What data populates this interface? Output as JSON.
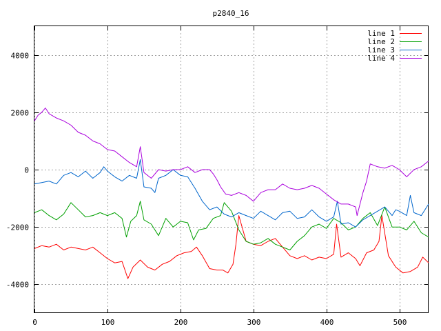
{
  "chart_data": {
    "type": "line",
    "title": "p2840_16",
    "xlabel": "",
    "ylabel": "",
    "xlim": [
      0,
      540
    ],
    "ylim": [
      -5000,
      5000
    ],
    "xticks": [
      0,
      100,
      200,
      300,
      400,
      500
    ],
    "yticks": [
      -4000,
      -2000,
      0,
      2000,
      4000
    ],
    "grid": true,
    "legend_position": "top-right",
    "series": [
      {
        "name": "line 1",
        "color": "#ff0000",
        "x": [
          0,
          10,
          20,
          30,
          40,
          50,
          60,
          70,
          80,
          90,
          100,
          110,
          120,
          128,
          135,
          145,
          155,
          165,
          175,
          185,
          195,
          205,
          215,
          222,
          230,
          240,
          250,
          258,
          265,
          272,
          276,
          280,
          290,
          300,
          310,
          320,
          330,
          340,
          350,
          360,
          370,
          380,
          390,
          400,
          410,
          414,
          420,
          430,
          440,
          446,
          455,
          465,
          472,
          476,
          485,
          495,
          505,
          515,
          525,
          532,
          540
        ],
        "y": [
          -2750,
          -2650,
          -2700,
          -2600,
          -2800,
          -2700,
          -2750,
          -2800,
          -2700,
          -2900,
          -3100,
          -3250,
          -3200,
          -3800,
          -3400,
          -3150,
          -3400,
          -3500,
          -3300,
          -3200,
          -3000,
          -2900,
          -2850,
          -2700,
          -3000,
          -3450,
          -3500,
          -3500,
          -3600,
          -3300,
          -2600,
          -1600,
          -2500,
          -2600,
          -2650,
          -2500,
          -2400,
          -2700,
          -3000,
          -3100,
          -3000,
          -3150,
          -3050,
          -3100,
          -2950,
          -1900,
          -3050,
          -2900,
          -3100,
          -3350,
          -2900,
          -2800,
          -2500,
          -1600,
          -3000,
          -3400,
          -3600,
          -3550,
          -3400,
          -3050,
          -3250
        ]
      },
      {
        "name": "line 2",
        "color": "#00a000",
        "x": [
          0,
          10,
          20,
          30,
          40,
          50,
          60,
          70,
          80,
          90,
          100,
          110,
          120,
          126,
          132,
          140,
          145,
          150,
          160,
          170,
          180,
          190,
          200,
          210,
          218,
          225,
          235,
          245,
          255,
          260,
          270,
          280,
          290,
          300,
          310,
          320,
          330,
          340,
          350,
          360,
          370,
          380,
          390,
          400,
          410,
          420,
          430,
          440,
          450,
          460,
          470,
          480,
          490,
          500,
          510,
          520,
          530,
          540
        ],
        "y": [
          -1500,
          -1400,
          -1600,
          -1750,
          -1550,
          -1150,
          -1400,
          -1650,
          -1600,
          -1500,
          -1600,
          -1500,
          -1700,
          -2350,
          -1800,
          -1600,
          -1100,
          -1750,
          -1900,
          -2300,
          -1700,
          -2000,
          -1800,
          -1850,
          -2450,
          -2100,
          -2050,
          -1700,
          -1600,
          -1150,
          -1450,
          -2100,
          -2500,
          -2600,
          -2550,
          -2400,
          -2600,
          -2700,
          -2800,
          -2500,
          -2300,
          -2000,
          -1900,
          -2050,
          -1700,
          -1850,
          -2100,
          -2000,
          -1700,
          -1500,
          -1950,
          -1300,
          -2000,
          -2000,
          -2100,
          -1800,
          -2200,
          -2350
        ]
      },
      {
        "name": "line 3",
        "color": "#0066cc",
        "x": [
          0,
          10,
          20,
          30,
          40,
          50,
          60,
          70,
          80,
          90,
          95,
          100,
          110,
          120,
          130,
          140,
          145,
          150,
          160,
          165,
          170,
          180,
          190,
          200,
          210,
          220,
          230,
          240,
          250,
          260,
          270,
          280,
          290,
          300,
          310,
          320,
          330,
          340,
          350,
          360,
          370,
          380,
          390,
          400,
          410,
          415,
          420,
          430,
          440,
          450,
          460,
          470,
          480,
          490,
          495,
          500,
          510,
          515,
          520,
          530,
          540
        ],
        "y": [
          -500,
          -450,
          -400,
          -500,
          -200,
          -100,
          -250,
          -50,
          -300,
          -100,
          100,
          -50,
          -250,
          -400,
          -200,
          -300,
          350,
          -600,
          -650,
          -800,
          -300,
          -200,
          0,
          -200,
          -250,
          -650,
          -1100,
          -1400,
          -1300,
          -1550,
          -1650,
          -1500,
          -1600,
          -1700,
          -1450,
          -1600,
          -1750,
          -1500,
          -1450,
          -1700,
          -1650,
          -1400,
          -1650,
          -1800,
          -1650,
          -1100,
          -1900,
          -1850,
          -2000,
          -1750,
          -1600,
          -1450,
          -1300,
          -1600,
          -1400,
          -1450,
          -1600,
          -900,
          -1500,
          -1600,
          -1200
        ]
      },
      {
        "name": "line 4",
        "color": "#aa00dd",
        "x": [
          0,
          5,
          10,
          15,
          20,
          30,
          40,
          50,
          60,
          70,
          80,
          90,
          100,
          110,
          120,
          130,
          140,
          145,
          150,
          160,
          170,
          180,
          190,
          200,
          210,
          220,
          230,
          240,
          245,
          250,
          255,
          262,
          270,
          280,
          290,
          300,
          310,
          320,
          330,
          340,
          350,
          360,
          370,
          380,
          390,
          400,
          410,
          420,
          430,
          440,
          442,
          450,
          455,
          460,
          470,
          480,
          490,
          500,
          510,
          520,
          530,
          540
        ],
        "y": [
          1700,
          1900,
          2000,
          2150,
          1950,
          1800,
          1700,
          1550,
          1300,
          1200,
          1000,
          900,
          700,
          650,
          450,
          250,
          100,
          800,
          -100,
          -300,
          0,
          -50,
          0,
          0,
          100,
          -100,
          0,
          0,
          -150,
          -350,
          -600,
          -850,
          -900,
          -800,
          -900,
          -1100,
          -800,
          -700,
          -700,
          -500,
          -650,
          -700,
          -650,
          -550,
          -650,
          -850,
          -1050,
          -1200,
          -1200,
          -1300,
          -1600,
          -800,
          -400,
          200,
          100,
          50,
          150,
          0,
          -250,
          0,
          100,
          300
        ]
      }
    ]
  }
}
